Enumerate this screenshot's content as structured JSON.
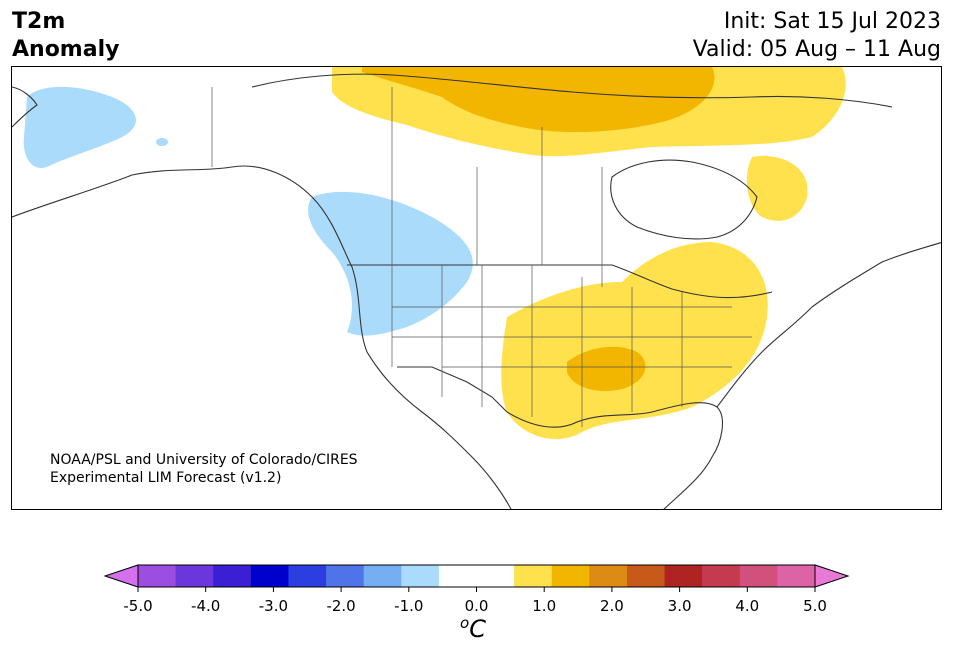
{
  "title": {
    "line1": "T2m",
    "line2": "Anomaly"
  },
  "dates": {
    "init": "Init: Sat 15 Jul 2023",
    "valid": "Valid: 05 Aug – 11 Aug"
  },
  "credit": {
    "line1": "NOAA/PSL and University of Colorado/CIRES",
    "line2": "Experimental LIM Forecast (v1.2)"
  },
  "map": {
    "region": "North America",
    "variable": "2-m temperature anomaly",
    "cool_anomalies": [
      "Alaska interior (-1.0)",
      "Pacific Northwest / British Columbia (-1.0)"
    ],
    "warm_anomalies": [
      "Canadian Arctic (+1.0 to +1.5)",
      "Hudson Bay / Labrador (+1.0)",
      "Central & southern Plains to Great Lakes (+1.0 to +1.5)"
    ],
    "colors": {
      "land": "#ffffff",
      "border": "#333333",
      "cool": "#abdbfb",
      "warm1": "#ffe14e",
      "warm2": "#f2b600"
    }
  },
  "colorbar": {
    "unit_label": "C",
    "unit_prefix": "o",
    "ticks": [
      "-5.0",
      "-4.0",
      "-3.0",
      "-2.0",
      "-1.0",
      "0.0",
      "1.0",
      "2.0",
      "3.0",
      "4.0",
      "5.0"
    ],
    "colors": [
      "#d470ec",
      "#9b4ee0",
      "#6b36dc",
      "#3a1fd4",
      "#0000cd",
      "#2b3fe0",
      "#4f73e8",
      "#75aef2",
      "#abdbfb",
      "#ffffff",
      "#ffffff",
      "#ffe14e",
      "#f2b600",
      "#de8b15",
      "#c75919",
      "#b02323",
      "#c43b4f",
      "#d2517c",
      "#dd63a7",
      "#e879d6"
    ]
  }
}
